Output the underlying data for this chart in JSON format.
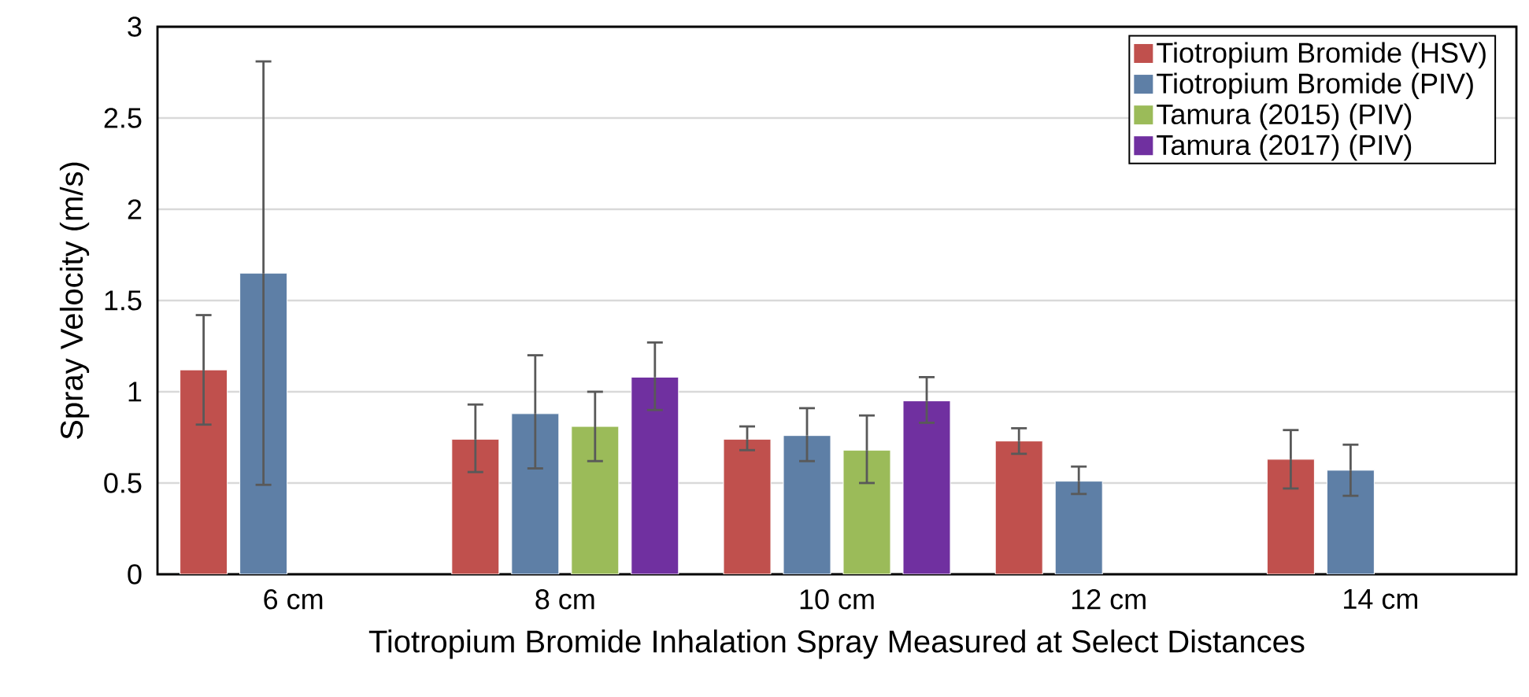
{
  "chart_data": {
    "type": "bar",
    "xlabel": "Tiotropium Bromide Inhalation Spray Measured at Select Distances",
    "ylabel": "Spray Velocity (m/s)",
    "categories": [
      "6 cm",
      "8 cm",
      "10 cm",
      "12 cm",
      "14 cm"
    ],
    "series": [
      {
        "name": "Tiotropium Bromide (HSV)",
        "color": "#c0504d",
        "values": [
          1.12,
          0.74,
          0.74,
          0.73,
          0.63
        ],
        "errors": [
          [
            0.82,
            1.42
          ],
          [
            0.56,
            0.93
          ],
          [
            0.68,
            0.81
          ],
          [
            0.66,
            0.8
          ],
          [
            0.47,
            0.79
          ]
        ]
      },
      {
        "name": "Tiotropium Bromide (PIV)",
        "color": "#5e7fa6",
        "values": [
          1.65,
          0.88,
          0.76,
          0.51,
          0.57
        ],
        "errors": [
          [
            0.49,
            2.81
          ],
          [
            0.58,
            1.2
          ],
          [
            0.62,
            0.91
          ],
          [
            0.44,
            0.59
          ],
          [
            0.43,
            0.71
          ]
        ]
      },
      {
        "name": "Tamura (2015) (PIV)",
        "color": "#9bbb59",
        "values": [
          null,
          0.81,
          0.68,
          null,
          null
        ],
        "errors": [
          null,
          [
            0.62,
            1.0
          ],
          [
            0.5,
            0.87
          ],
          null,
          null
        ]
      },
      {
        "name": "Tamura (2017) (PIV)",
        "color": "#7030a0",
        "values": [
          null,
          1.08,
          0.95,
          null,
          null
        ],
        "errors": [
          null,
          [
            0.9,
            1.27
          ],
          [
            0.83,
            1.08
          ],
          null,
          null
        ]
      }
    ],
    "ylim": [
      0,
      3
    ],
    "yticks": [
      0,
      0.5,
      1,
      1.5,
      2,
      2.5,
      3
    ],
    "grid": "y",
    "legend": "top right"
  }
}
